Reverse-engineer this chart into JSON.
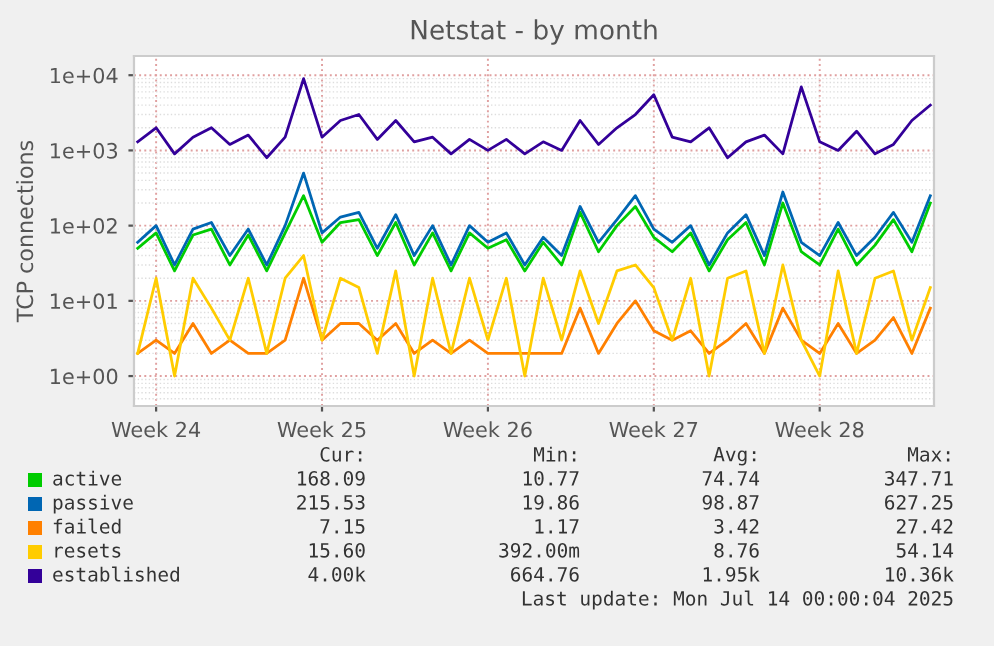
{
  "chart_data": {
    "type": "line",
    "title": "Netstat - by month",
    "ylabel": "TCP connections",
    "log": true,
    "grid": true,
    "legend": "bottom",
    "marker": "none",
    "line_style": "solid",
    "categories": [
      null,
      "Week 24",
      null,
      null,
      null,
      null,
      null,
      null,
      null,
      null,
      "Week 25",
      null,
      null,
      null,
      null,
      null,
      null,
      null,
      null,
      "Week 26",
      null,
      null,
      null,
      null,
      null,
      null,
      null,
      null,
      "Week 27",
      null,
      null,
      null,
      null,
      null,
      null,
      null,
      null,
      "Week 28",
      null,
      null,
      null,
      null,
      null,
      null
    ],
    "ylim": [
      0.4,
      18000
    ],
    "yticks": [
      {
        "value": 1,
        "label": "1e+00"
      },
      {
        "value": 10,
        "label": "1e+01"
      },
      {
        "value": 100,
        "label": "1e+02"
      },
      {
        "value": 1000,
        "label": "1e+03"
      },
      {
        "value": 10000,
        "label": "1e+04"
      }
    ],
    "series": [
      {
        "name": "active",
        "color": "#00cc00",
        "values": [
          50,
          80,
          25,
          75,
          90,
          30,
          75,
          25,
          80,
          250,
          60,
          110,
          120,
          40,
          110,
          30,
          80,
          25,
          80,
          50,
          65,
          25,
          60,
          30,
          150,
          45,
          100,
          180,
          70,
          45,
          80,
          25,
          65,
          110,
          30,
          200,
          45,
          30,
          90,
          30,
          55,
          120,
          45,
          200
        ]
      },
      {
        "name": "passive",
        "color": "#0066b3",
        "values": [
          60,
          100,
          30,
          90,
          110,
          40,
          90,
          30,
          100,
          500,
          80,
          130,
          150,
          50,
          140,
          40,
          100,
          30,
          100,
          60,
          80,
          30,
          70,
          40,
          180,
          60,
          120,
          250,
          90,
          60,
          100,
          30,
          80,
          140,
          40,
          280,
          60,
          40,
          110,
          40,
          70,
          150,
          60,
          250
        ]
      },
      {
        "name": "failed",
        "color": "#ff8000",
        "values": [
          2,
          3,
          2,
          5,
          2,
          3,
          2,
          2,
          3,
          20,
          3,
          5,
          5,
          3,
          5,
          2,
          3,
          2,
          3,
          2,
          2,
          2,
          2,
          2,
          8,
          2,
          5,
          10,
          4,
          3,
          4,
          2,
          3,
          5,
          2,
          8,
          3,
          2,
          5,
          2,
          3,
          6,
          2,
          8
        ]
      },
      {
        "name": "resets",
        "color": "#ffcc00",
        "values": [
          2,
          20,
          1,
          20,
          8,
          3,
          20,
          2,
          20,
          40,
          3,
          20,
          15,
          2,
          25,
          1,
          20,
          2,
          20,
          3,
          20,
          1,
          20,
          3,
          25,
          5,
          25,
          30,
          15,
          3,
          20,
          1,
          20,
          25,
          2,
          30,
          3,
          1,
          25,
          2,
          20,
          25,
          3,
          15
        ]
      },
      {
        "name": "established",
        "color": "#330099",
        "values": [
          1300,
          2000,
          900,
          1500,
          2000,
          1200,
          1600,
          800,
          1500,
          9000,
          1500,
          2500,
          3000,
          1400,
          2500,
          1300,
          1500,
          900,
          1400,
          1000,
          1400,
          900,
          1300,
          1000,
          2500,
          1200,
          2000,
          3000,
          5500,
          1500,
          1300,
          2000,
          800,
          1300,
          1600,
          900,
          7000,
          1300,
          1000,
          1800,
          900,
          1200,
          2500,
          4000
        ]
      }
    ],
    "annotations": [
      "Cur:",
      "Min:",
      "Avg:",
      "Max:",
      "168.09",
      "10.77",
      "74.74",
      "347.71",
      "215.53",
      "19.86",
      "98.87",
      "627.25",
      "7.15",
      "1.17",
      "3.42",
      "27.42",
      "15.60",
      "392.00m",
      "8.76",
      "54.14",
      "4.00k",
      "664.76",
      "1.95k",
      "10.36k",
      "Last update: Mon Jul 14 00:00:04 2025"
    ]
  }
}
